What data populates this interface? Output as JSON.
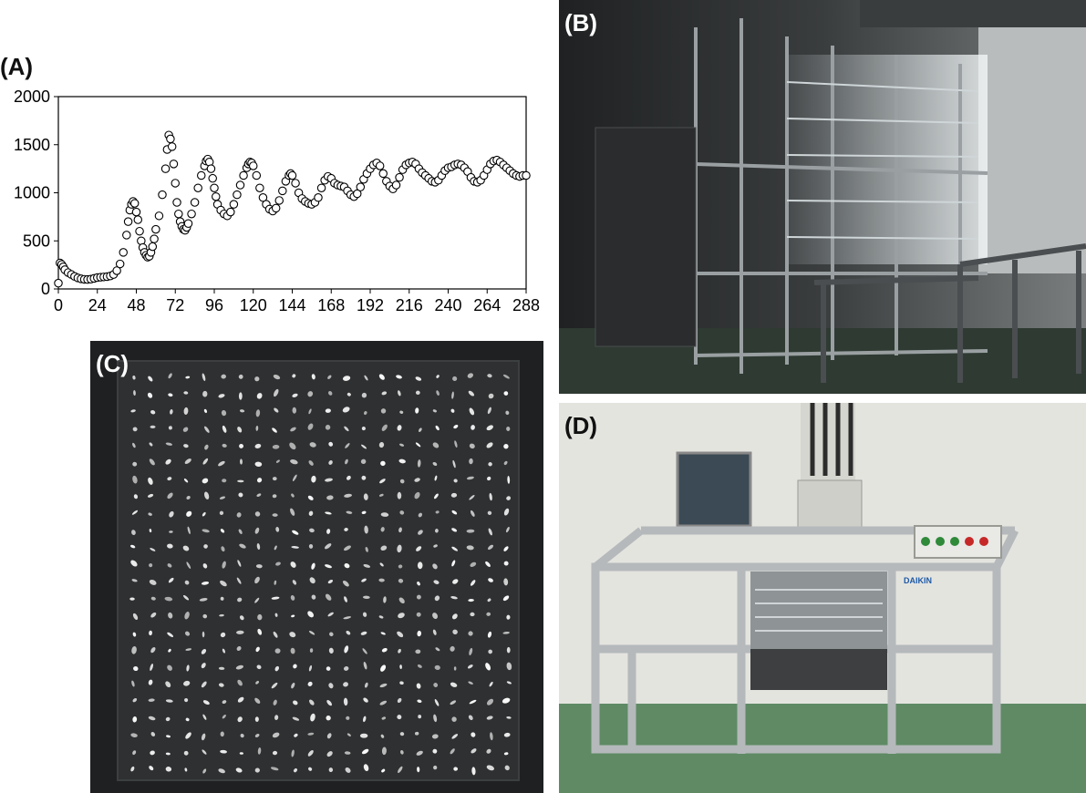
{
  "figure": {
    "panel_labels": {
      "a": "(A)",
      "b": "(B)",
      "c": "(C)",
      "d": "(D)"
    },
    "control_box_label": "DAIKIN"
  },
  "chart_data": {
    "type": "scatter",
    "title": "",
    "xlabel": "",
    "ylabel": "",
    "xlim": [
      0,
      288
    ],
    "ylim": [
      0,
      2000
    ],
    "xticks": [
      0,
      24,
      48,
      72,
      96,
      120,
      144,
      168,
      192,
      216,
      240,
      264,
      288
    ],
    "yticks": [
      0,
      500,
      1000,
      1500,
      2000
    ],
    "grid": false,
    "legend": "none",
    "marker": "open-circle",
    "series": [
      {
        "points": [
          [
            0,
            60
          ],
          [
            1,
            270
          ],
          [
            2,
            255
          ],
          [
            3,
            230
          ],
          [
            4,
            200
          ],
          [
            6,
            170
          ],
          [
            8,
            150
          ],
          [
            10,
            130
          ],
          [
            12,
            115
          ],
          [
            14,
            105
          ],
          [
            16,
            100
          ],
          [
            18,
            98
          ],
          [
            20,
            102
          ],
          [
            22,
            110
          ],
          [
            24,
            118
          ],
          [
            26,
            122
          ],
          [
            28,
            125
          ],
          [
            30,
            128
          ],
          [
            32,
            135
          ],
          [
            34,
            150
          ],
          [
            36,
            190
          ],
          [
            38,
            260
          ],
          [
            40,
            380
          ],
          [
            42,
            560
          ],
          [
            43,
            700
          ],
          [
            44,
            820
          ],
          [
            45,
            880
          ],
          [
            46,
            910
          ],
          [
            47,
            890
          ],
          [
            48,
            800
          ],
          [
            49,
            720
          ],
          [
            50,
            600
          ],
          [
            51,
            500
          ],
          [
            52,
            430
          ],
          [
            53,
            380
          ],
          [
            54,
            350
          ],
          [
            55,
            330
          ],
          [
            56,
            340
          ],
          [
            57,
            380
          ],
          [
            58,
            440
          ],
          [
            59,
            520
          ],
          [
            60,
            620
          ],
          [
            62,
            760
          ],
          [
            64,
            980
          ],
          [
            66,
            1250
          ],
          [
            67,
            1450
          ],
          [
            68,
            1600
          ],
          [
            69,
            1560
          ],
          [
            70,
            1480
          ],
          [
            71,
            1300
          ],
          [
            72,
            1100
          ],
          [
            73,
            900
          ],
          [
            74,
            780
          ],
          [
            75,
            700
          ],
          [
            76,
            650
          ],
          [
            77,
            620
          ],
          [
            78,
            610
          ],
          [
            79,
            640
          ],
          [
            80,
            680
          ],
          [
            82,
            780
          ],
          [
            84,
            900
          ],
          [
            86,
            1050
          ],
          [
            88,
            1180
          ],
          [
            90,
            1280
          ],
          [
            91,
            1330
          ],
          [
            92,
            1350
          ],
          [
            93,
            1320
          ],
          [
            94,
            1250
          ],
          [
            95,
            1150
          ],
          [
            96,
            1050
          ],
          [
            97,
            960
          ],
          [
            98,
            880
          ],
          [
            100,
            820
          ],
          [
            102,
            780
          ],
          [
            104,
            760
          ],
          [
            106,
            800
          ],
          [
            108,
            880
          ],
          [
            110,
            980
          ],
          [
            112,
            1080
          ],
          [
            114,
            1180
          ],
          [
            116,
            1260
          ],
          [
            117,
            1300
          ],
          [
            118,
            1320
          ],
          [
            119,
            1310
          ],
          [
            120,
            1280
          ],
          [
            122,
            1180
          ],
          [
            124,
            1050
          ],
          [
            126,
            950
          ],
          [
            128,
            880
          ],
          [
            130,
            830
          ],
          [
            132,
            810
          ],
          [
            134,
            840
          ],
          [
            136,
            920
          ],
          [
            138,
            1020
          ],
          [
            140,
            1120
          ],
          [
            142,
            1180
          ],
          [
            143,
            1200
          ],
          [
            144,
            1180
          ],
          [
            146,
            1100
          ],
          [
            148,
            1000
          ],
          [
            150,
            940
          ],
          [
            152,
            910
          ],
          [
            154,
            890
          ],
          [
            156,
            880
          ],
          [
            158,
            900
          ],
          [
            160,
            950
          ],
          [
            162,
            1050
          ],
          [
            164,
            1130
          ],
          [
            166,
            1170
          ],
          [
            168,
            1150
          ],
          [
            170,
            1100
          ],
          [
            172,
            1080
          ],
          [
            174,
            1070
          ],
          [
            176,
            1060
          ],
          [
            178,
            1020
          ],
          [
            180,
            980
          ],
          [
            182,
            960
          ],
          [
            184,
            990
          ],
          [
            186,
            1060
          ],
          [
            188,
            1140
          ],
          [
            190,
            1200
          ],
          [
            192,
            1250
          ],
          [
            194,
            1290
          ],
          [
            196,
            1310
          ],
          [
            198,
            1280
          ],
          [
            200,
            1200
          ],
          [
            202,
            1120
          ],
          [
            204,
            1070
          ],
          [
            206,
            1040
          ],
          [
            208,
            1080
          ],
          [
            210,
            1160
          ],
          [
            212,
            1240
          ],
          [
            214,
            1290
          ],
          [
            216,
            1310
          ],
          [
            218,
            1320
          ],
          [
            220,
            1300
          ],
          [
            222,
            1250
          ],
          [
            224,
            1210
          ],
          [
            226,
            1180
          ],
          [
            228,
            1150
          ],
          [
            230,
            1120
          ],
          [
            232,
            1110
          ],
          [
            234,
            1130
          ],
          [
            236,
            1180
          ],
          [
            238,
            1230
          ],
          [
            240,
            1260
          ],
          [
            242,
            1270
          ],
          [
            244,
            1290
          ],
          [
            246,
            1300
          ],
          [
            248,
            1290
          ],
          [
            250,
            1260
          ],
          [
            252,
            1220
          ],
          [
            254,
            1160
          ],
          [
            256,
            1120
          ],
          [
            258,
            1110
          ],
          [
            260,
            1130
          ],
          [
            262,
            1180
          ],
          [
            264,
            1240
          ],
          [
            266,
            1300
          ],
          [
            268,
            1330
          ],
          [
            270,
            1340
          ],
          [
            272,
            1320
          ],
          [
            274,
            1290
          ],
          [
            276,
            1260
          ],
          [
            278,
            1230
          ],
          [
            280,
            1200
          ],
          [
            282,
            1180
          ],
          [
            284,
            1170
          ],
          [
            286,
            1180
          ],
          [
            288,
            1180
          ]
        ]
      }
    ]
  }
}
